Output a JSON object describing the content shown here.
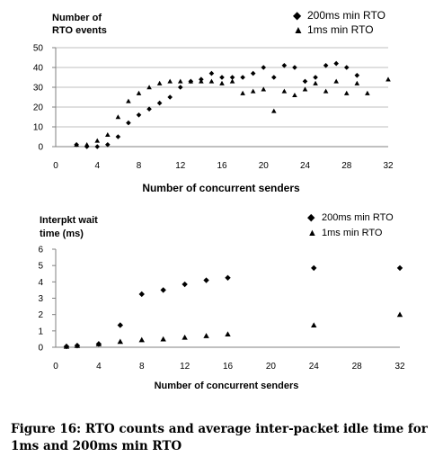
{
  "caption": "Figure 16: RTO counts and average inter-packet idle time for 1ms and 200ms min RTO",
  "chart_data": [
    {
      "type": "scatter",
      "ylabel_line1": "Number of",
      "ylabel_line2": "RTO events",
      "xlabel": "Number of concurrent senders",
      "xlim": [
        0,
        32
      ],
      "ylim": [
        0,
        50
      ],
      "xticks": [
        0,
        4,
        8,
        12,
        16,
        20,
        24,
        28,
        32
      ],
      "yticks": [
        0,
        10,
        20,
        30,
        40,
        50
      ],
      "grid": "horizontal",
      "legend_position": "top-right",
      "series": [
        {
          "name": "200ms min RTO",
          "marker": "diamond",
          "x": [
            2,
            3,
            4,
            5,
            6,
            7,
            8,
            9,
            10,
            11,
            12,
            13,
            14,
            15,
            16,
            17,
            18,
            19,
            20,
            21,
            22,
            23,
            24,
            25,
            26,
            27,
            28,
            29
          ],
          "y": [
            1,
            0,
            0,
            1,
            5,
            12,
            16,
            19,
            22,
            25,
            30,
            33,
            34,
            37,
            35,
            35,
            35,
            37,
            40,
            35,
            41,
            40,
            33,
            35,
            41,
            42,
            40,
            36
          ]
        },
        {
          "name": "1ms min RTO",
          "marker": "triangle",
          "x": [
            2,
            3,
            4,
            5,
            6,
            7,
            8,
            9,
            10,
            11,
            12,
            13,
            14,
            15,
            16,
            17,
            18,
            19,
            20,
            21,
            22,
            23,
            24,
            25,
            26,
            27,
            28,
            29,
            30,
            32
          ],
          "y": [
            1,
            1,
            3,
            6,
            15,
            23,
            27,
            30,
            32,
            33,
            33,
            33,
            33,
            33,
            32,
            33,
            27,
            28,
            29,
            18,
            28,
            26,
            29,
            32,
            28,
            33,
            27,
            32,
            27,
            34
          ]
        }
      ]
    },
    {
      "type": "scatter",
      "ylabel_line1": "Interpkt wait",
      "ylabel_line2": "time (ms)",
      "xlabel": "Number of concurrent senders",
      "xlim": [
        0,
        32
      ],
      "ylim": [
        0,
        6
      ],
      "xticks": [
        0,
        4,
        8,
        12,
        16,
        20,
        24,
        28,
        32
      ],
      "yticks": [
        0,
        1,
        2,
        3,
        4,
        5,
        6
      ],
      "grid": "none",
      "legend_position": "top-right",
      "series": [
        {
          "name": "200ms min RTO",
          "marker": "diamond",
          "x": [
            1,
            2,
            4,
            6,
            8,
            10,
            12,
            14,
            16,
            24,
            32
          ],
          "y": [
            0.05,
            0.1,
            0.2,
            1.35,
            3.25,
            3.5,
            3.85,
            4.1,
            4.25,
            4.85,
            4.85
          ]
        },
        {
          "name": "1ms min RTO",
          "marker": "triangle",
          "x": [
            1,
            2,
            4,
            6,
            8,
            10,
            12,
            14,
            16,
            24,
            32
          ],
          "y": [
            0.05,
            0.1,
            0.2,
            0.35,
            0.45,
            0.5,
            0.6,
            0.7,
            0.8,
            1.35,
            2.0
          ]
        }
      ]
    }
  ]
}
